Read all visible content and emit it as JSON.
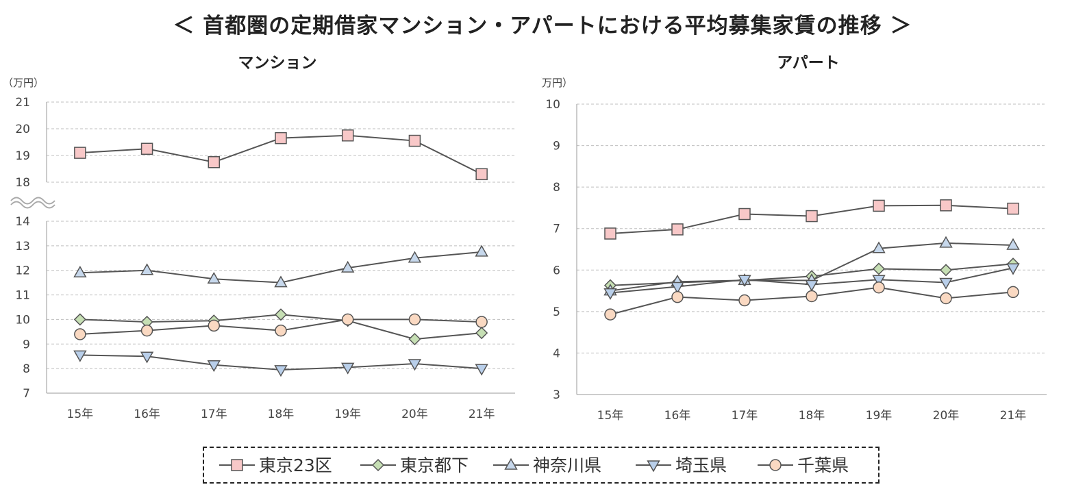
{
  "title": "＜ 首都圏の定期借家マンション・アパートにおける平均募集家賃の推移 ＞",
  "colors": {
    "line": "#555555",
    "grid": "#bfbfbf",
    "axis": "#999999"
  },
  "chart_data": [
    {
      "type": "line",
      "title": "マンション",
      "unit_label": "（万円）",
      "categories": [
        "15年",
        "16年",
        "17年",
        "18年",
        "19年",
        "20年",
        "21年"
      ],
      "broken_axis": true,
      "ylim_upper": [
        18,
        21
      ],
      "yticks_upper": [
        "18",
        "19",
        "20",
        "21"
      ],
      "ylim_lower": [
        7,
        14
      ],
      "yticks_lower": [
        "7",
        "8",
        "9",
        "10",
        "11",
        "12",
        "13",
        "14"
      ],
      "grid": true,
      "series": [
        {
          "name": "東京23区",
          "marker": "square",
          "fill": "#f8c8c8",
          "values": [
            19.1,
            19.25,
            18.75,
            19.65,
            19.75,
            19.55,
            18.3
          ]
        },
        {
          "name": "東京都下",
          "marker": "diamond",
          "fill": "#c6dfb4",
          "values": [
            10.0,
            9.9,
            9.95,
            10.2,
            9.95,
            9.2,
            9.45
          ]
        },
        {
          "name": "神奈川県",
          "marker": "triangle-up",
          "fill": "#c7d8ec",
          "values": [
            11.9,
            12.0,
            11.65,
            11.5,
            12.1,
            12.5,
            12.75
          ]
        },
        {
          "name": "埼玉県",
          "marker": "triangle-down",
          "fill": "#b9cfea",
          "values": [
            8.55,
            8.5,
            8.15,
            7.95,
            8.05,
            8.2,
            8.0
          ]
        },
        {
          "name": "千葉県",
          "marker": "circle",
          "fill": "#fad9c2",
          "values": [
            9.4,
            9.55,
            9.75,
            9.55,
            10.0,
            10.0,
            9.9
          ]
        }
      ]
    },
    {
      "type": "line",
      "title": "アパート",
      "unit_label": "（万円）",
      "categories": [
        "15年",
        "16年",
        "17年",
        "18年",
        "19年",
        "20年",
        "21年"
      ],
      "ylim": [
        3,
        10
      ],
      "yticks": [
        "3",
        "4",
        "5",
        "6",
        "7",
        "8",
        "9",
        "10"
      ],
      "grid": true,
      "series": [
        {
          "name": "東京23区",
          "marker": "square",
          "fill": "#f8c8c8",
          "values": [
            6.88,
            6.98,
            7.35,
            7.3,
            7.55,
            7.56,
            7.48
          ]
        },
        {
          "name": "東京都下",
          "marker": "diamond",
          "fill": "#c6dfb4",
          "values": [
            5.63,
            5.7,
            5.75,
            5.85,
            6.03,
            6.0,
            6.15
          ]
        },
        {
          "name": "神奈川県",
          "marker": "triangle-up",
          "fill": "#c7d8ec",
          "values": [
            5.5,
            5.72,
            5.75,
            5.75,
            6.52,
            6.65,
            6.6
          ]
        },
        {
          "name": "埼玉県",
          "marker": "triangle-down",
          "fill": "#b9cfea",
          "values": [
            5.45,
            5.6,
            5.77,
            5.65,
            5.77,
            5.7,
            6.05
          ]
        },
        {
          "name": "千葉県",
          "marker": "circle",
          "fill": "#fad9c2",
          "values": [
            4.93,
            5.35,
            5.27,
            5.37,
            5.58,
            5.32,
            5.47
          ]
        }
      ]
    }
  ],
  "legend": {
    "placement": "bottom",
    "items": [
      {
        "label": "東京23区",
        "marker": "square",
        "fill": "#f8c8c8"
      },
      {
        "label": "東京都下",
        "marker": "diamond",
        "fill": "#c6dfb4"
      },
      {
        "label": "神奈川県",
        "marker": "triangle-up",
        "fill": "#c7d8ec"
      },
      {
        "label": "埼玉県",
        "marker": "triangle-down",
        "fill": "#b9cfea"
      },
      {
        "label": "千葉県",
        "marker": "circle",
        "fill": "#fad9c2"
      }
    ]
  }
}
